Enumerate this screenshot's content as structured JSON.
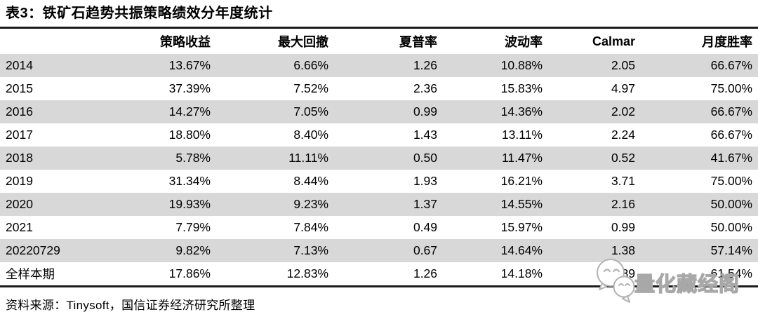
{
  "page": {
    "title": "表3：铁矿石趋势共振策略绩效分年度统计",
    "source_note": "资料来源：Tinysoft，国信证券经济研究所整理"
  },
  "table": {
    "columns": [
      "",
      "策略收益",
      "最大回撤",
      "夏普率",
      "波动率",
      "Calmar",
      "月度胜率"
    ],
    "rows": [
      {
        "label": "2014",
        "values": [
          "13.67%",
          "6.66%",
          "1.26",
          "10.88%",
          "2.05",
          "66.67%"
        ]
      },
      {
        "label": "2015",
        "values": [
          "37.39%",
          "7.52%",
          "2.36",
          "15.83%",
          "4.97",
          "75.00%"
        ]
      },
      {
        "label": "2016",
        "values": [
          "14.27%",
          "7.05%",
          "0.99",
          "14.36%",
          "2.02",
          "66.67%"
        ]
      },
      {
        "label": "2017",
        "values": [
          "18.80%",
          "8.40%",
          "1.43",
          "13.11%",
          "2.24",
          "66.67%"
        ]
      },
      {
        "label": "2018",
        "values": [
          "5.78%",
          "11.11%",
          "0.50",
          "11.47%",
          "0.52",
          "41.67%"
        ]
      },
      {
        "label": "2019",
        "values": [
          "31.34%",
          "8.44%",
          "1.93",
          "16.21%",
          "3.71",
          "75.00%"
        ]
      },
      {
        "label": "2020",
        "values": [
          "19.93%",
          "9.23%",
          "1.37",
          "14.55%",
          "2.16",
          "50.00%"
        ]
      },
      {
        "label": "2021",
        "values": [
          "7.79%",
          "7.84%",
          "0.49",
          "15.97%",
          "0.99",
          "50.00%"
        ]
      },
      {
        "label": "20220729",
        "values": [
          "9.82%",
          "7.13%",
          "0.67",
          "14.64%",
          "1.38",
          "57.14%"
        ]
      },
      {
        "label": "全样本期",
        "values": [
          "17.86%",
          "12.83%",
          "1.26",
          "14.18%",
          "1.39",
          "61.54%"
        ]
      }
    ]
  },
  "watermark": {
    "text": "量化藏经阁",
    "icon": "chat-bubbles-logo"
  },
  "colors": {
    "row_alt": "#d8d8d8",
    "rule": "#1a1a1a",
    "watermark": "#a8a8a8"
  }
}
